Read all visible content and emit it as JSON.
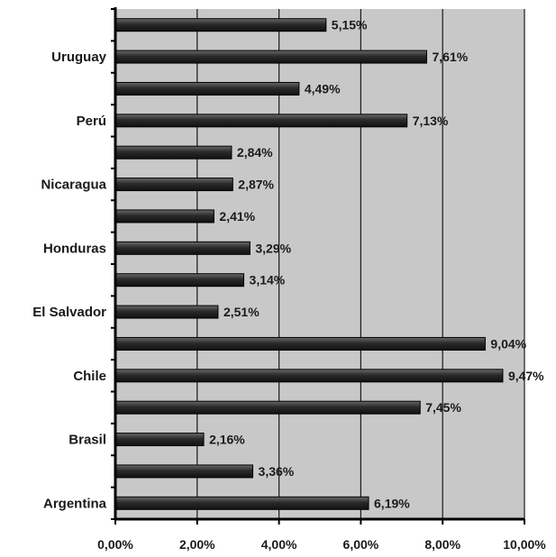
{
  "chart_data": {
    "type": "bar",
    "orientation": "horizontal",
    "categories": [
      "Argentina",
      "",
      "Brasil",
      "",
      "Chile",
      "",
      "El Salvador",
      "",
      "Honduras",
      "",
      "Nicaragua",
      "",
      "Perú",
      "",
      "Uruguay",
      ""
    ],
    "values": [
      6.19,
      3.36,
      2.16,
      7.45,
      9.47,
      9.04,
      2.51,
      3.14,
      3.29,
      2.41,
      2.87,
      2.84,
      7.13,
      4.49,
      7.61,
      5.15
    ],
    "value_labels": [
      "6,19%",
      "3,36%",
      "2,16%",
      "7,45%",
      "9,47%",
      "9,04%",
      "2,51%",
      "3,14%",
      "3,29%",
      "2,41%",
      "2,87%",
      "2,84%",
      "7,13%",
      "4,49%",
      "7,61%",
      "5,15%"
    ],
    "xlim": [
      0,
      10
    ],
    "xticks": [
      0,
      2,
      4,
      6,
      8,
      10
    ],
    "xtick_labels": [
      "0,00%",
      "2,00%",
      "4,00%",
      "6,00%",
      "8,00%",
      "10,00%"
    ],
    "grid": "vertical",
    "legend": "none",
    "colors": {
      "plot_bg": "#c8c8c8",
      "bar": "#2e2e2e",
      "grid": "#1a1a1a"
    }
  }
}
